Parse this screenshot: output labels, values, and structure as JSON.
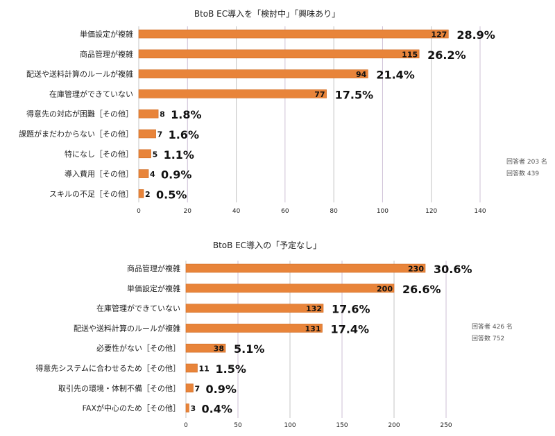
{
  "chart_data": [
    {
      "type": "bar",
      "orientation": "horizontal",
      "title": "BtoB EC導入を「検討中」「興味あり」",
      "categories": [
        "単価設定が複雑",
        "商品管理が複雑",
        "配送や送料計算のルールが複雑",
        "在庫管理ができていない",
        "得意先の対応が困難［その他］",
        "課題がまだわからない［その他］",
        "特になし［その他］",
        "導入費用［その他］",
        "スキルの不足［その他］"
      ],
      "values": [
        127,
        115,
        94,
        77,
        8,
        7,
        5,
        4,
        2
      ],
      "percents": [
        "28.9%",
        "26.2%",
        "21.4%",
        "17.5%",
        "1.8%",
        "1.6%",
        "1.1%",
        "0.9%",
        "0.5%"
      ],
      "xlim": [
        0,
        140
      ],
      "xticks": [
        0,
        20,
        40,
        60,
        80,
        100,
        120,
        140
      ],
      "notes": [
        "回答者 203 名",
        "回答数 439"
      ],
      "bar_color": "#e8843a"
    },
    {
      "type": "bar",
      "orientation": "horizontal",
      "title": "BtoB EC導入の「予定なし」",
      "categories": [
        "商品管理が複雑",
        "単価設定が複雑",
        "在庫管理ができていない",
        "配送や送料計算のルールが複雑",
        "必要性がない［その他］",
        "得意先システムに合わせるため［その他］",
        "取引先の環境・体制不備［その他］",
        "FAXが中心のため［その他］"
      ],
      "values": [
        230,
        200,
        132,
        131,
        38,
        11,
        7,
        3
      ],
      "percents": [
        "30.6%",
        "26.6%",
        "17.6%",
        "17.4%",
        "5.1%",
        "1.5%",
        "0.9%",
        "0.4%"
      ],
      "xlim": [
        0,
        250
      ],
      "xticks": [
        0,
        50,
        100,
        150,
        200,
        250
      ],
      "notes": [
        "回答者 426 名",
        "回答数 752"
      ],
      "bar_color": "#e8843a"
    }
  ]
}
